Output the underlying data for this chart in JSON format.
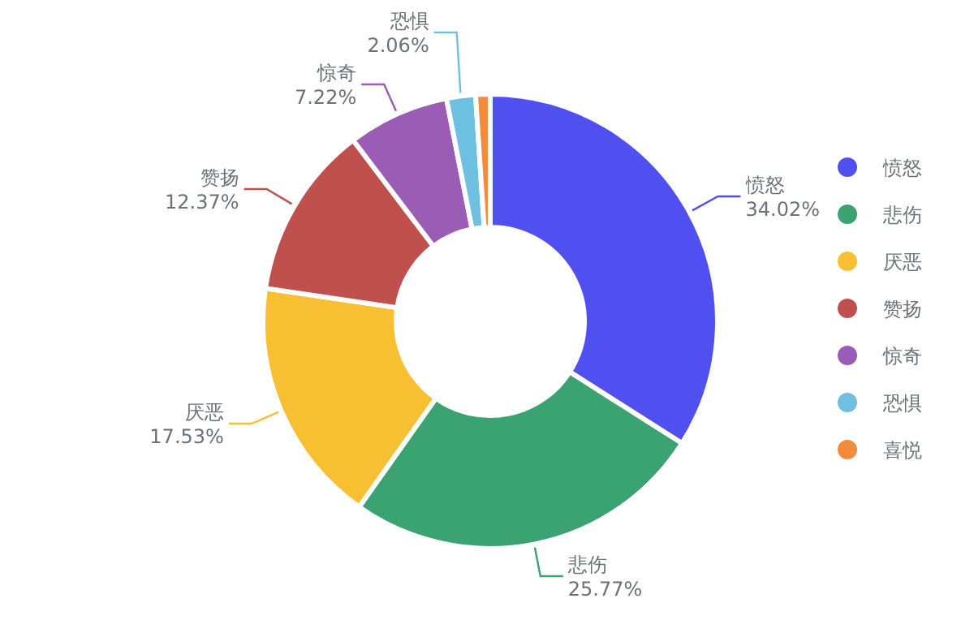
{
  "chart_data": {
    "type": "donut",
    "categories": [
      "愤怒",
      "悲伤",
      "厌恶",
      "赞扬",
      "惊奇",
      "恐惧",
      "喜悦"
    ],
    "values": [
      34.02,
      25.77,
      17.53,
      12.37,
      7.22,
      2.06,
      1.03
    ],
    "colors": [
      "#5050f0",
      "#3ba272",
      "#f9bf33",
      "#c0504d",
      "#9a5cb4",
      "#6ec0e0",
      "#f08c3c"
    ],
    "value_labels": [
      "34.02%",
      "25.77%",
      "17.53%",
      "12.37%",
      "7.22%",
      "2.06%",
      null
    ],
    "legend": "right"
  }
}
